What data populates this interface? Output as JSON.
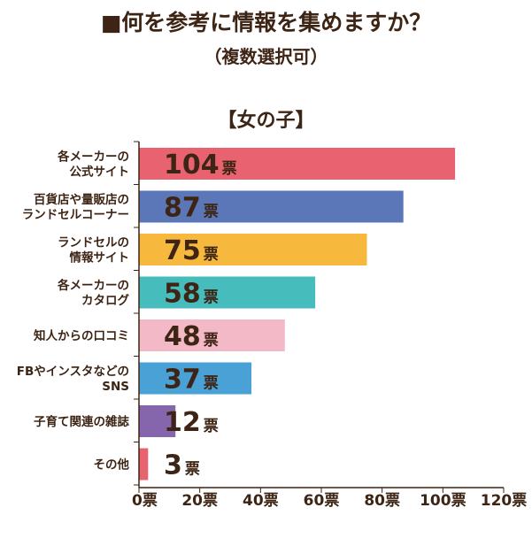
{
  "header": {
    "title": "■何を参考に情報を集めますか？",
    "subtitle": "（複数選択可）",
    "group": "【女の子】"
  },
  "chart_data": {
    "type": "bar",
    "orientation": "horizontal",
    "title": "■何を参考に情報を集めますか？",
    "subtitle": "（複数選択可）",
    "unit": "票",
    "categories": [
      [
        "各メーカーの",
        "公式サイト"
      ],
      [
        "百貨店や量販店の",
        "ランドセルコーナー"
      ],
      [
        "ランドセルの",
        "情報サイト"
      ],
      [
        "各メーカーの",
        "カタログ"
      ],
      [
        "知人からの口コミ"
      ],
      [
        "FBやインスタなどの",
        "SNS"
      ],
      [
        "子育て関連の雑誌"
      ],
      [
        "その他"
      ]
    ],
    "values": [
      104,
      87,
      75,
      58,
      48,
      37,
      12,
      3
    ],
    "colors": [
      "#e8636f",
      "#5b77b8",
      "#f6b93e",
      "#46bdbc",
      "#f4b9c6",
      "#4aa1d6",
      "#8566ad",
      "#e8636f"
    ],
    "xlim": [
      0,
      120
    ],
    "xticks": [
      0,
      20,
      40,
      60,
      80,
      100,
      120
    ],
    "xtick_labels": [
      "0票",
      "20票",
      "40票",
      "60票",
      "80票",
      "100票",
      "120票"
    ],
    "axis_color": "#3d2414"
  }
}
